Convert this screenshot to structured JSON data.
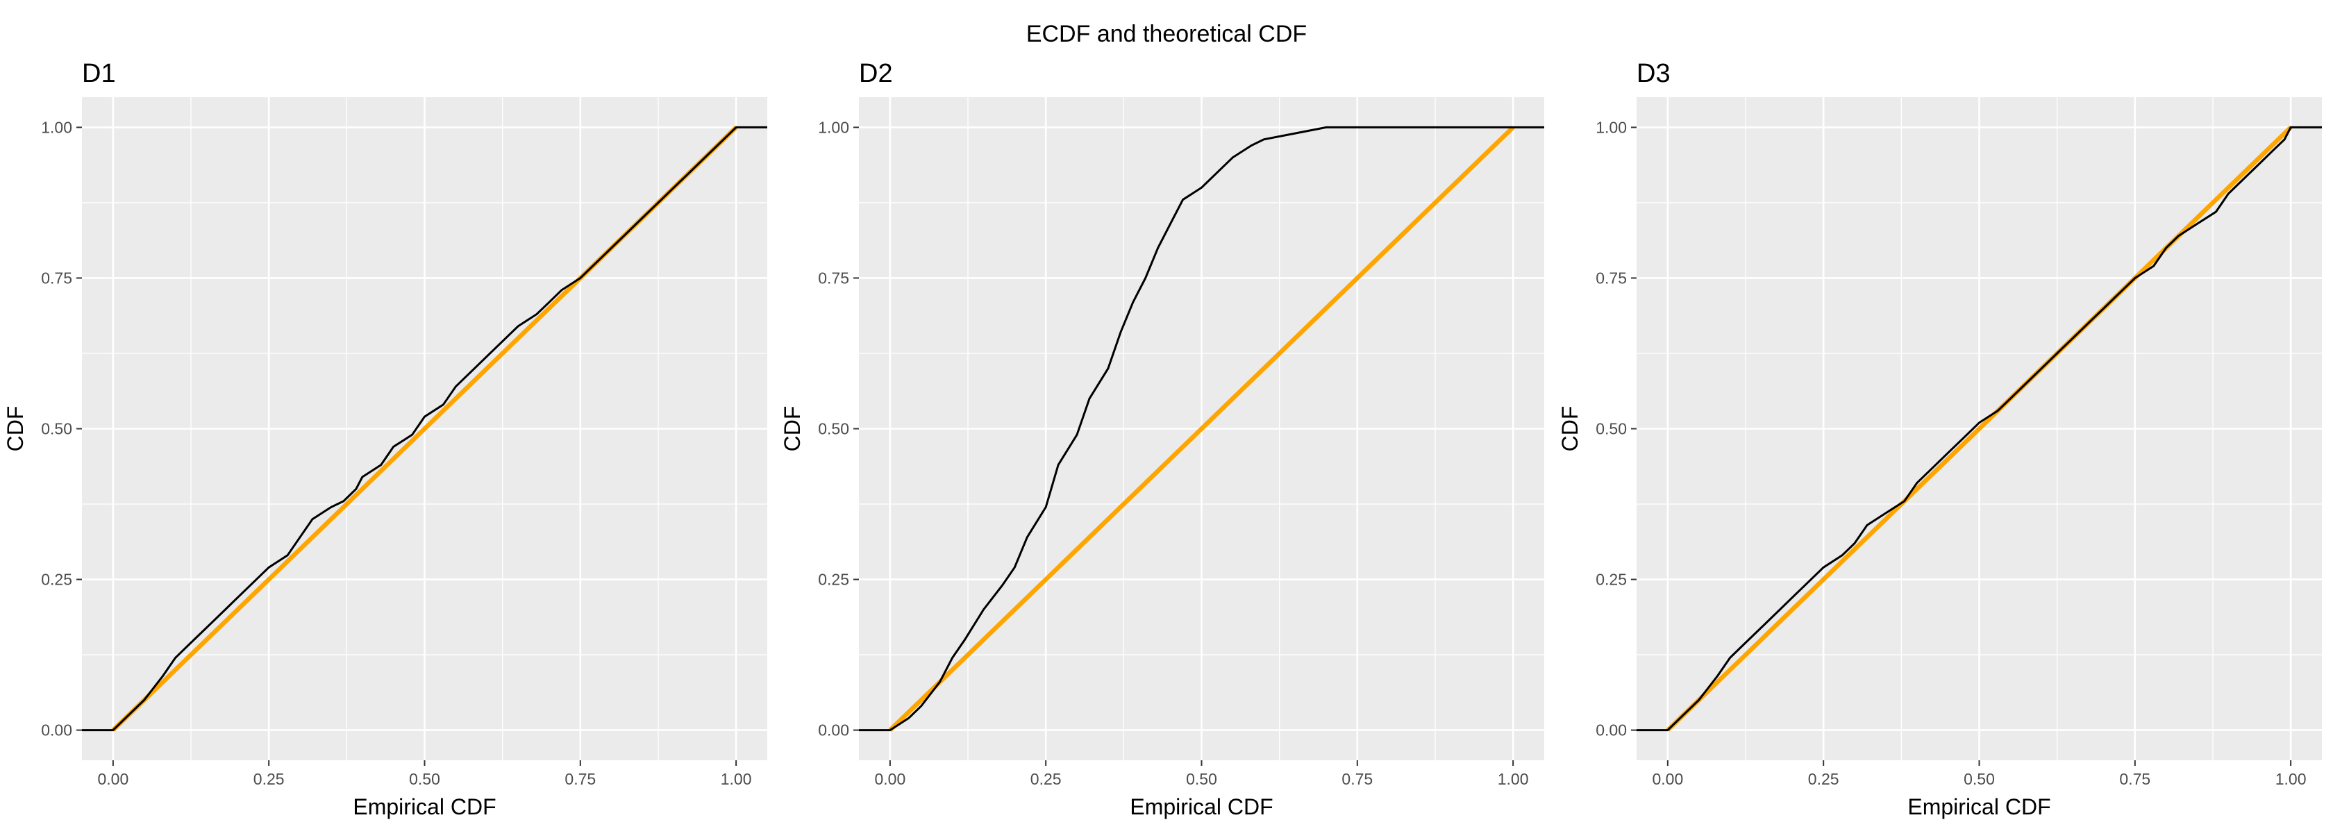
{
  "chart_data": {
    "title": "ECDF and theoretical CDF",
    "type": "line",
    "xlabel": "Empirical CDF",
    "ylabel": "CDF",
    "xlim": [
      -0.05,
      1.05
    ],
    "ylim": [
      -0.05,
      1.05
    ],
    "x_ticks": [
      0.0,
      0.25,
      0.5,
      0.75,
      1.0
    ],
    "x_tick_labels": [
      "0.00",
      "0.25",
      "0.50",
      "0.75",
      "1.00"
    ],
    "y_ticks": [
      0.0,
      0.25,
      0.5,
      0.75,
      1.0
    ],
    "y_tick_labels": [
      "0.00",
      "0.25",
      "0.50",
      "0.75",
      "1.00"
    ],
    "grid": true,
    "colors": {
      "theoretical": "#FFA500",
      "empirical": "#000000",
      "panel": "#EBEBEB"
    },
    "panels": [
      {
        "title": "D1",
        "theoretical": {
          "x": [
            0,
            1
          ],
          "y": [
            0,
            1
          ]
        },
        "empirical": {
          "x": [
            -0.05,
            0.0,
            0.02,
            0.05,
            0.08,
            0.1,
            0.12,
            0.15,
            0.18,
            0.2,
            0.22,
            0.25,
            0.28,
            0.3,
            0.32,
            0.35,
            0.37,
            0.39,
            0.4,
            0.43,
            0.45,
            0.48,
            0.5,
            0.53,
            0.55,
            0.58,
            0.6,
            0.63,
            0.65,
            0.68,
            0.7,
            0.72,
            0.75,
            0.78,
            0.8,
            0.82,
            0.85,
            0.88,
            0.9,
            0.92,
            0.95,
            0.97,
            0.99,
            1.0,
            1.05
          ],
          "y": [
            0.0,
            0.0,
            0.02,
            0.05,
            0.09,
            0.12,
            0.14,
            0.17,
            0.2,
            0.22,
            0.24,
            0.27,
            0.29,
            0.32,
            0.35,
            0.37,
            0.38,
            0.4,
            0.42,
            0.44,
            0.47,
            0.49,
            0.52,
            0.54,
            0.57,
            0.6,
            0.62,
            0.65,
            0.67,
            0.69,
            0.71,
            0.73,
            0.75,
            0.78,
            0.8,
            0.82,
            0.85,
            0.88,
            0.9,
            0.92,
            0.95,
            0.97,
            0.99,
            1.0,
            1.0
          ]
        }
      },
      {
        "title": "D2",
        "theoretical": {
          "x": [
            0,
            1
          ],
          "y": [
            0,
            1
          ]
        },
        "empirical": {
          "x": [
            -0.05,
            0.0,
            0.03,
            0.05,
            0.08,
            0.1,
            0.12,
            0.15,
            0.18,
            0.2,
            0.22,
            0.25,
            0.27,
            0.3,
            0.32,
            0.35,
            0.37,
            0.39,
            0.41,
            0.43,
            0.45,
            0.47,
            0.5,
            0.53,
            0.55,
            0.58,
            0.6,
            0.65,
            0.7,
            0.73,
            0.8,
            0.9,
            1.05
          ],
          "y": [
            0.0,
            0.0,
            0.02,
            0.04,
            0.08,
            0.12,
            0.15,
            0.2,
            0.24,
            0.27,
            0.32,
            0.37,
            0.44,
            0.49,
            0.55,
            0.6,
            0.66,
            0.71,
            0.75,
            0.8,
            0.84,
            0.88,
            0.9,
            0.93,
            0.95,
            0.97,
            0.98,
            0.99,
            1.0,
            1.0,
            1.0,
            1.0,
            1.0
          ]
        }
      },
      {
        "title": "D3",
        "theoretical": {
          "x": [
            0,
            1
          ],
          "y": [
            0,
            1
          ]
        },
        "empirical": {
          "x": [
            -0.05,
            0.0,
            0.02,
            0.05,
            0.08,
            0.1,
            0.12,
            0.15,
            0.18,
            0.2,
            0.22,
            0.25,
            0.28,
            0.3,
            0.32,
            0.35,
            0.38,
            0.4,
            0.43,
            0.45,
            0.48,
            0.5,
            0.53,
            0.55,
            0.58,
            0.6,
            0.63,
            0.65,
            0.68,
            0.7,
            0.72,
            0.75,
            0.78,
            0.8,
            0.82,
            0.85,
            0.88,
            0.9,
            0.92,
            0.95,
            0.97,
            0.99,
            1.0,
            1.05
          ],
          "y": [
            0.0,
            0.0,
            0.02,
            0.05,
            0.09,
            0.12,
            0.14,
            0.17,
            0.2,
            0.22,
            0.24,
            0.27,
            0.29,
            0.31,
            0.34,
            0.36,
            0.38,
            0.41,
            0.44,
            0.46,
            0.49,
            0.51,
            0.53,
            0.55,
            0.58,
            0.6,
            0.63,
            0.65,
            0.68,
            0.7,
            0.72,
            0.75,
            0.77,
            0.8,
            0.82,
            0.84,
            0.86,
            0.89,
            0.91,
            0.94,
            0.96,
            0.98,
            1.0,
            1.0
          ]
        }
      }
    ]
  }
}
